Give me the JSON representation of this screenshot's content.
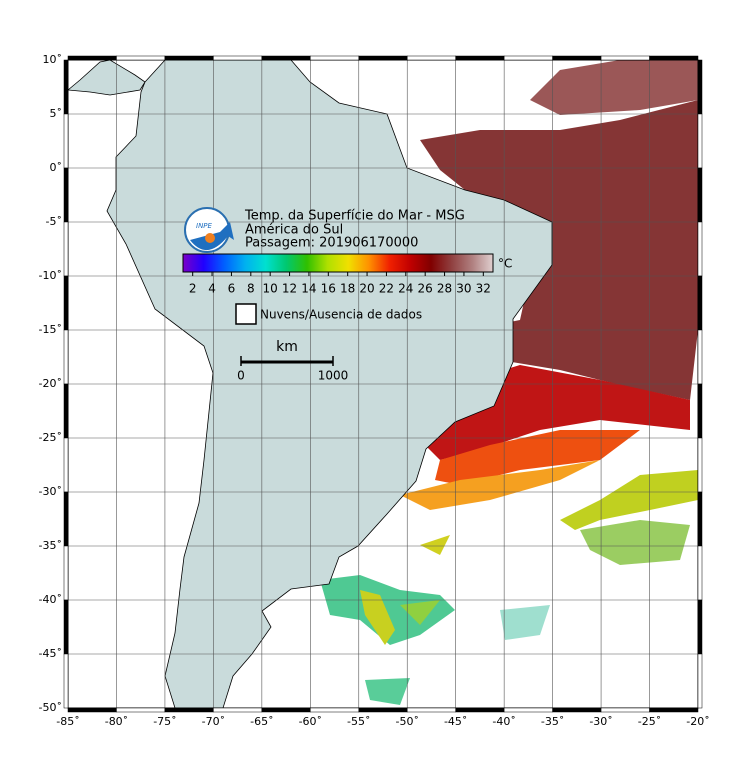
{
  "map": {
    "title": "Temp. da Superfície do Mar - MSG",
    "region": "América do Sul",
    "pass": "Passagem: 201906170000",
    "logo_text": "INPE",
    "lat_labels": [
      "10˚",
      "5˚",
      "0˚",
      "-5˚",
      "-10˚",
      "-15˚",
      "-20˚",
      "-25˚",
      "-30˚",
      "-35˚",
      "-40˚",
      "-45˚",
      "-50˚"
    ],
    "lon_labels": [
      "-85˚",
      "-80˚",
      "-75˚",
      "-70˚",
      "-65˚",
      "-60˚",
      "-55˚",
      "-50˚",
      "-45˚",
      "-40˚",
      "-35˚",
      "-30˚",
      "-25˚",
      "-20˚"
    ],
    "colorbar": {
      "unit": "°C",
      "range": [
        1,
        33
      ],
      "ticks": [
        2,
        4,
        6,
        8,
        10,
        12,
        14,
        16,
        18,
        20,
        22,
        24,
        26,
        28,
        30,
        32
      ],
      "colors": [
        "#7a00c8",
        "#2000ff",
        "#0060ff",
        "#00b0f0",
        "#00e0d0",
        "#00c870",
        "#30c000",
        "#b0e000",
        "#f0e000",
        "#ff9000",
        "#f02000",
        "#c00000",
        "#800000",
        "#904040",
        "#b08080",
        "#e0d0d0"
      ]
    },
    "legend": {
      "label": "Nuvens/Ausencia de dados"
    },
    "scale": {
      "unit": "km",
      "start": "0",
      "end": "1000"
    }
  }
}
